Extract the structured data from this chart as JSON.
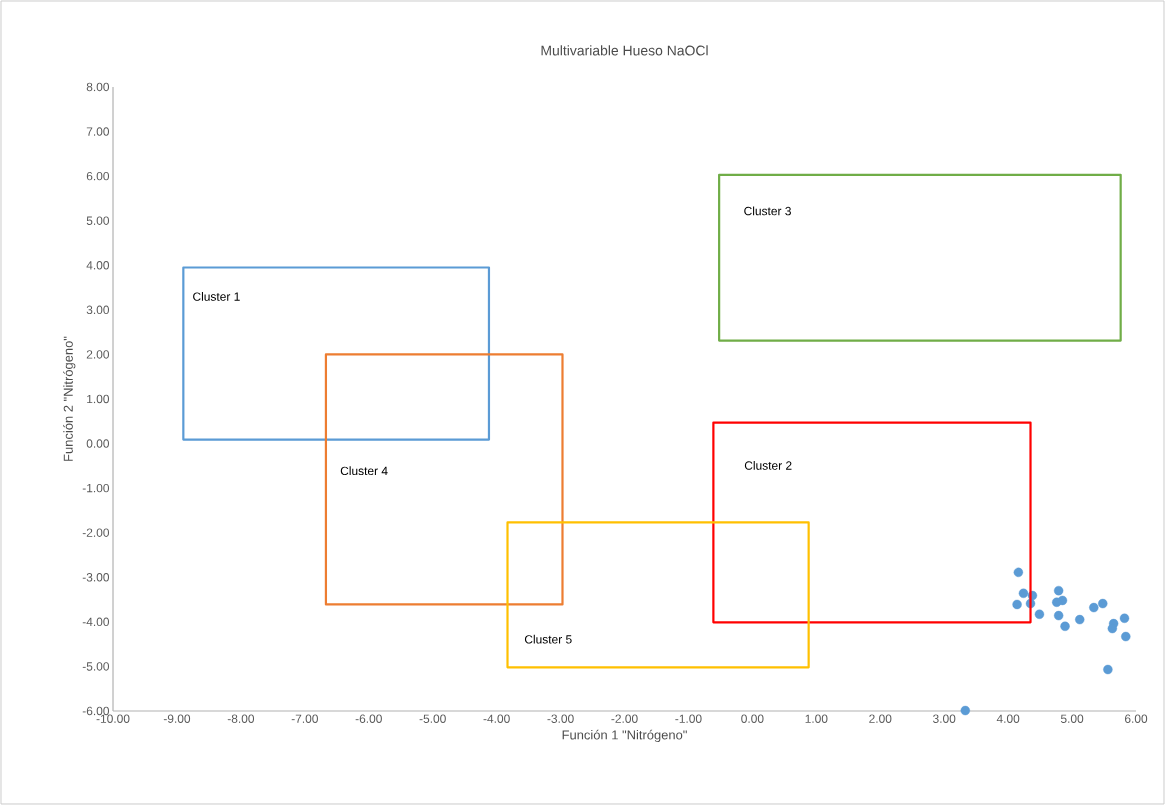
{
  "chart_data": {
    "type": "scatter",
    "title": "Multivariable Hueso NaOCl",
    "xlabel": "Función 1 \"Nitrógeno\"",
    "ylabel": "Función 2 \"Nitrógeno\"",
    "xlim": [
      -10,
      6
    ],
    "ylim": [
      -6,
      8
    ],
    "marker": "circle",
    "xticks": [
      {
        "value": -10,
        "label": "-10.00"
      },
      {
        "value": -9,
        "label": "-9.00"
      },
      {
        "value": -8,
        "label": "-8.00"
      },
      {
        "value": -7,
        "label": "-7.00"
      },
      {
        "value": -6,
        "label": "-6.00"
      },
      {
        "value": -5,
        "label": "-5.00"
      },
      {
        "value": -4,
        "label": "-4.00"
      },
      {
        "value": -3,
        "label": "-3.00"
      },
      {
        "value": -2,
        "label": "-2.00"
      },
      {
        "value": -1,
        "label": "-1.00"
      },
      {
        "value": 0,
        "label": "0.00"
      },
      {
        "value": 1,
        "label": "1.00"
      },
      {
        "value": 2,
        "label": "2.00"
      },
      {
        "value": 3,
        "label": "3.00"
      },
      {
        "value": 4,
        "label": "4.00"
      },
      {
        "value": 5,
        "label": "5.00"
      },
      {
        "value": 6,
        "label": "6.00"
      }
    ],
    "yticks": [
      {
        "value": -6,
        "label": "-6.00"
      },
      {
        "value": -5,
        "label": "-5.00"
      },
      {
        "value": -4,
        "label": "-4.00"
      },
      {
        "value": -3,
        "label": "-3.00"
      },
      {
        "value": -2,
        "label": "-2.00"
      },
      {
        "value": -1,
        "label": "-1.00"
      },
      {
        "value": 0,
        "label": "0.00"
      },
      {
        "value": 1,
        "label": "1.00"
      },
      {
        "value": 2,
        "label": "2.00"
      },
      {
        "value": 3,
        "label": "3.00"
      },
      {
        "value": 4,
        "label": "4.00"
      },
      {
        "value": 5,
        "label": "5.00"
      },
      {
        "value": 6,
        "label": "6.00"
      },
      {
        "value": 7,
        "label": "7.00"
      },
      {
        "value": 8,
        "label": "8.00"
      }
    ],
    "annotations": [
      "Cluster 1",
      "Cluster 3",
      "Cluster 4",
      "Cluster 2",
      "Cluster 5"
    ],
    "series": [
      {
        "color": "#5b9bd5",
        "x": [
          4.16,
          4.24,
          4.14,
          4.38,
          4.35,
          4.49,
          4.79,
          4.85,
          4.76,
          4.79,
          4.89,
          5.12,
          5.34,
          5.48,
          5.65,
          5.63,
          5.82,
          5.84,
          5.56,
          3.33
        ],
        "values": [
          -2.89,
          -3.36,
          -3.61,
          -3.41,
          -3.59,
          -3.83,
          -3.3,
          -3.52,
          -3.56,
          -3.86,
          -4.1,
          -3.95,
          -3.68,
          -3.59,
          -4.04,
          -4.15,
          -3.92,
          -4.33,
          -5.07,
          -5.99
        ]
      }
    ]
  }
}
